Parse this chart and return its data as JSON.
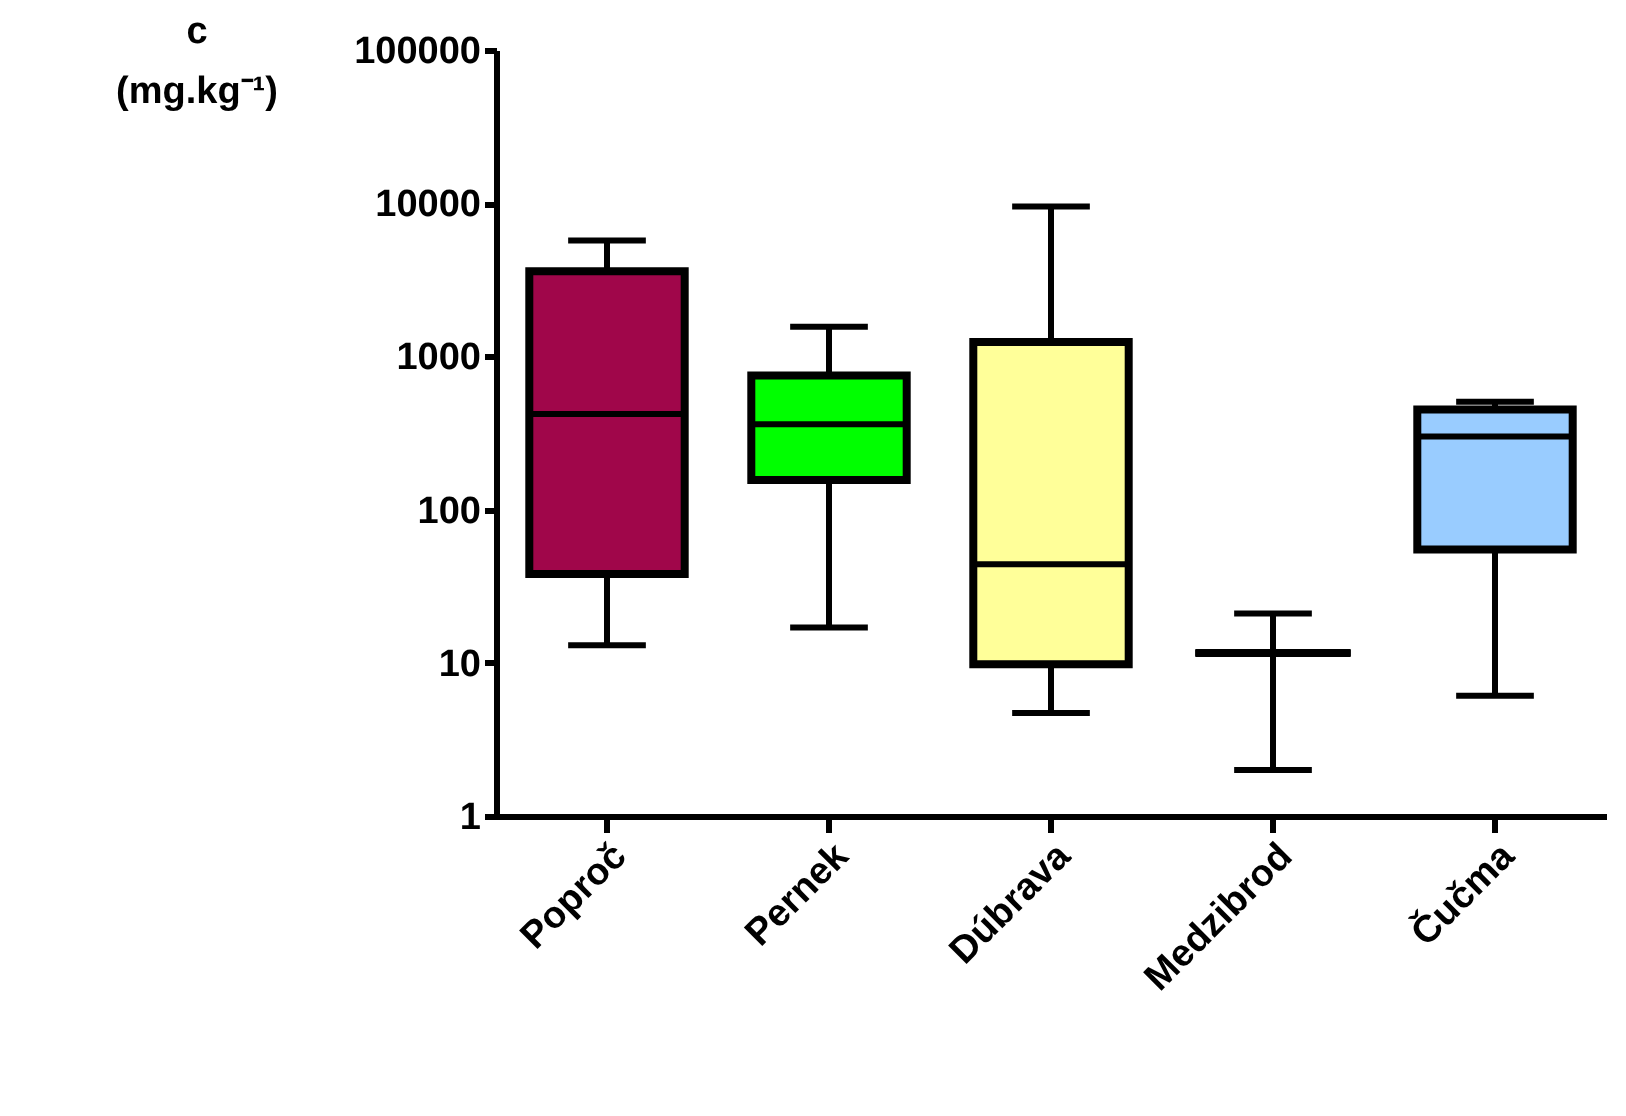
{
  "chart_data": {
    "type": "box",
    "ylabel": "c (mg.kg⁻¹)",
    "categories": [
      "Poproč",
      "Pernek",
      "Dúbrava",
      "Medzibrod",
      "Čučma"
    ],
    "colors": [
      "#a0064a",
      "#00ff00",
      "#ffff99",
      "#000000",
      "#99ccff"
    ],
    "boxes": [
      {
        "low": 13,
        "q1": 38,
        "median": 420,
        "q3": 3600,
        "high": 5700
      },
      {
        "low": 17,
        "q1": 156,
        "median": 360,
        "q3": 750,
        "high": 1560
      },
      {
        "low": 4.7,
        "q1": 9.8,
        "median": 44,
        "q3": 1240,
        "high": 9500
      },
      {
        "low": 2,
        "q1": 11.6,
        "median": 11.6,
        "q3": 11.6,
        "high": 21
      },
      {
        "low": 6.1,
        "q1": 55,
        "median": 300,
        "q3": 450,
        "high": 505
      }
    ],
    "log": true,
    "ylim": [
      1,
      100000
    ],
    "yticks": [
      1,
      10,
      100,
      1000,
      10000,
      100000
    ],
    "grid": false,
    "legend": false
  }
}
